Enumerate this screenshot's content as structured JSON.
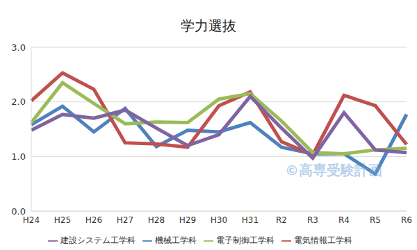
{
  "chart_data": {
    "type": "line",
    "title": "学力選抜",
    "annotations": [
      "©高専受験計画"
    ],
    "categories": [
      "H24",
      "H25",
      "H26",
      "H27",
      "H28",
      "H29",
      "H30",
      "H31",
      "R2",
      "R3",
      "R4",
      "R5",
      "R6"
    ],
    "series": [
      {
        "name": "機械工学科",
        "color": "#4f81bd",
        "values": [
          1.58,
          1.92,
          1.45,
          1.88,
          1.18,
          1.48,
          1.45,
          1.62,
          1.17,
          1.05,
          1.05,
          0.68,
          1.77
        ]
      },
      {
        "name": "電気情報工学科",
        "color": "#c0504d",
        "values": [
          2.02,
          2.53,
          2.23,
          1.25,
          1.23,
          1.17,
          1.93,
          2.18,
          1.27,
          1.03,
          2.12,
          1.93,
          1.22
        ]
      },
      {
        "name": "電子制御工学科",
        "color": "#9bbb59",
        "values": [
          1.62,
          2.35,
          1.97,
          1.6,
          1.63,
          1.62,
          2.05,
          2.15,
          1.65,
          1.07,
          1.05,
          1.12,
          1.15
        ]
      },
      {
        "name": "建設システム工学科",
        "color": "#8064a2",
        "values": [
          1.48,
          1.77,
          1.7,
          1.85,
          1.52,
          1.2,
          1.4,
          2.1,
          1.52,
          0.97,
          1.8,
          1.12,
          1.07
        ]
      }
    ],
    "ylim": [
      0,
      3
    ],
    "yticks": [
      {
        "value": 0,
        "label": "0.0"
      },
      {
        "value": 1,
        "label": "1.0"
      },
      {
        "value": 2,
        "label": "2.0"
      },
      {
        "value": 3,
        "label": "3.0"
      }
    ],
    "grid": true,
    "legend": "bottom"
  }
}
